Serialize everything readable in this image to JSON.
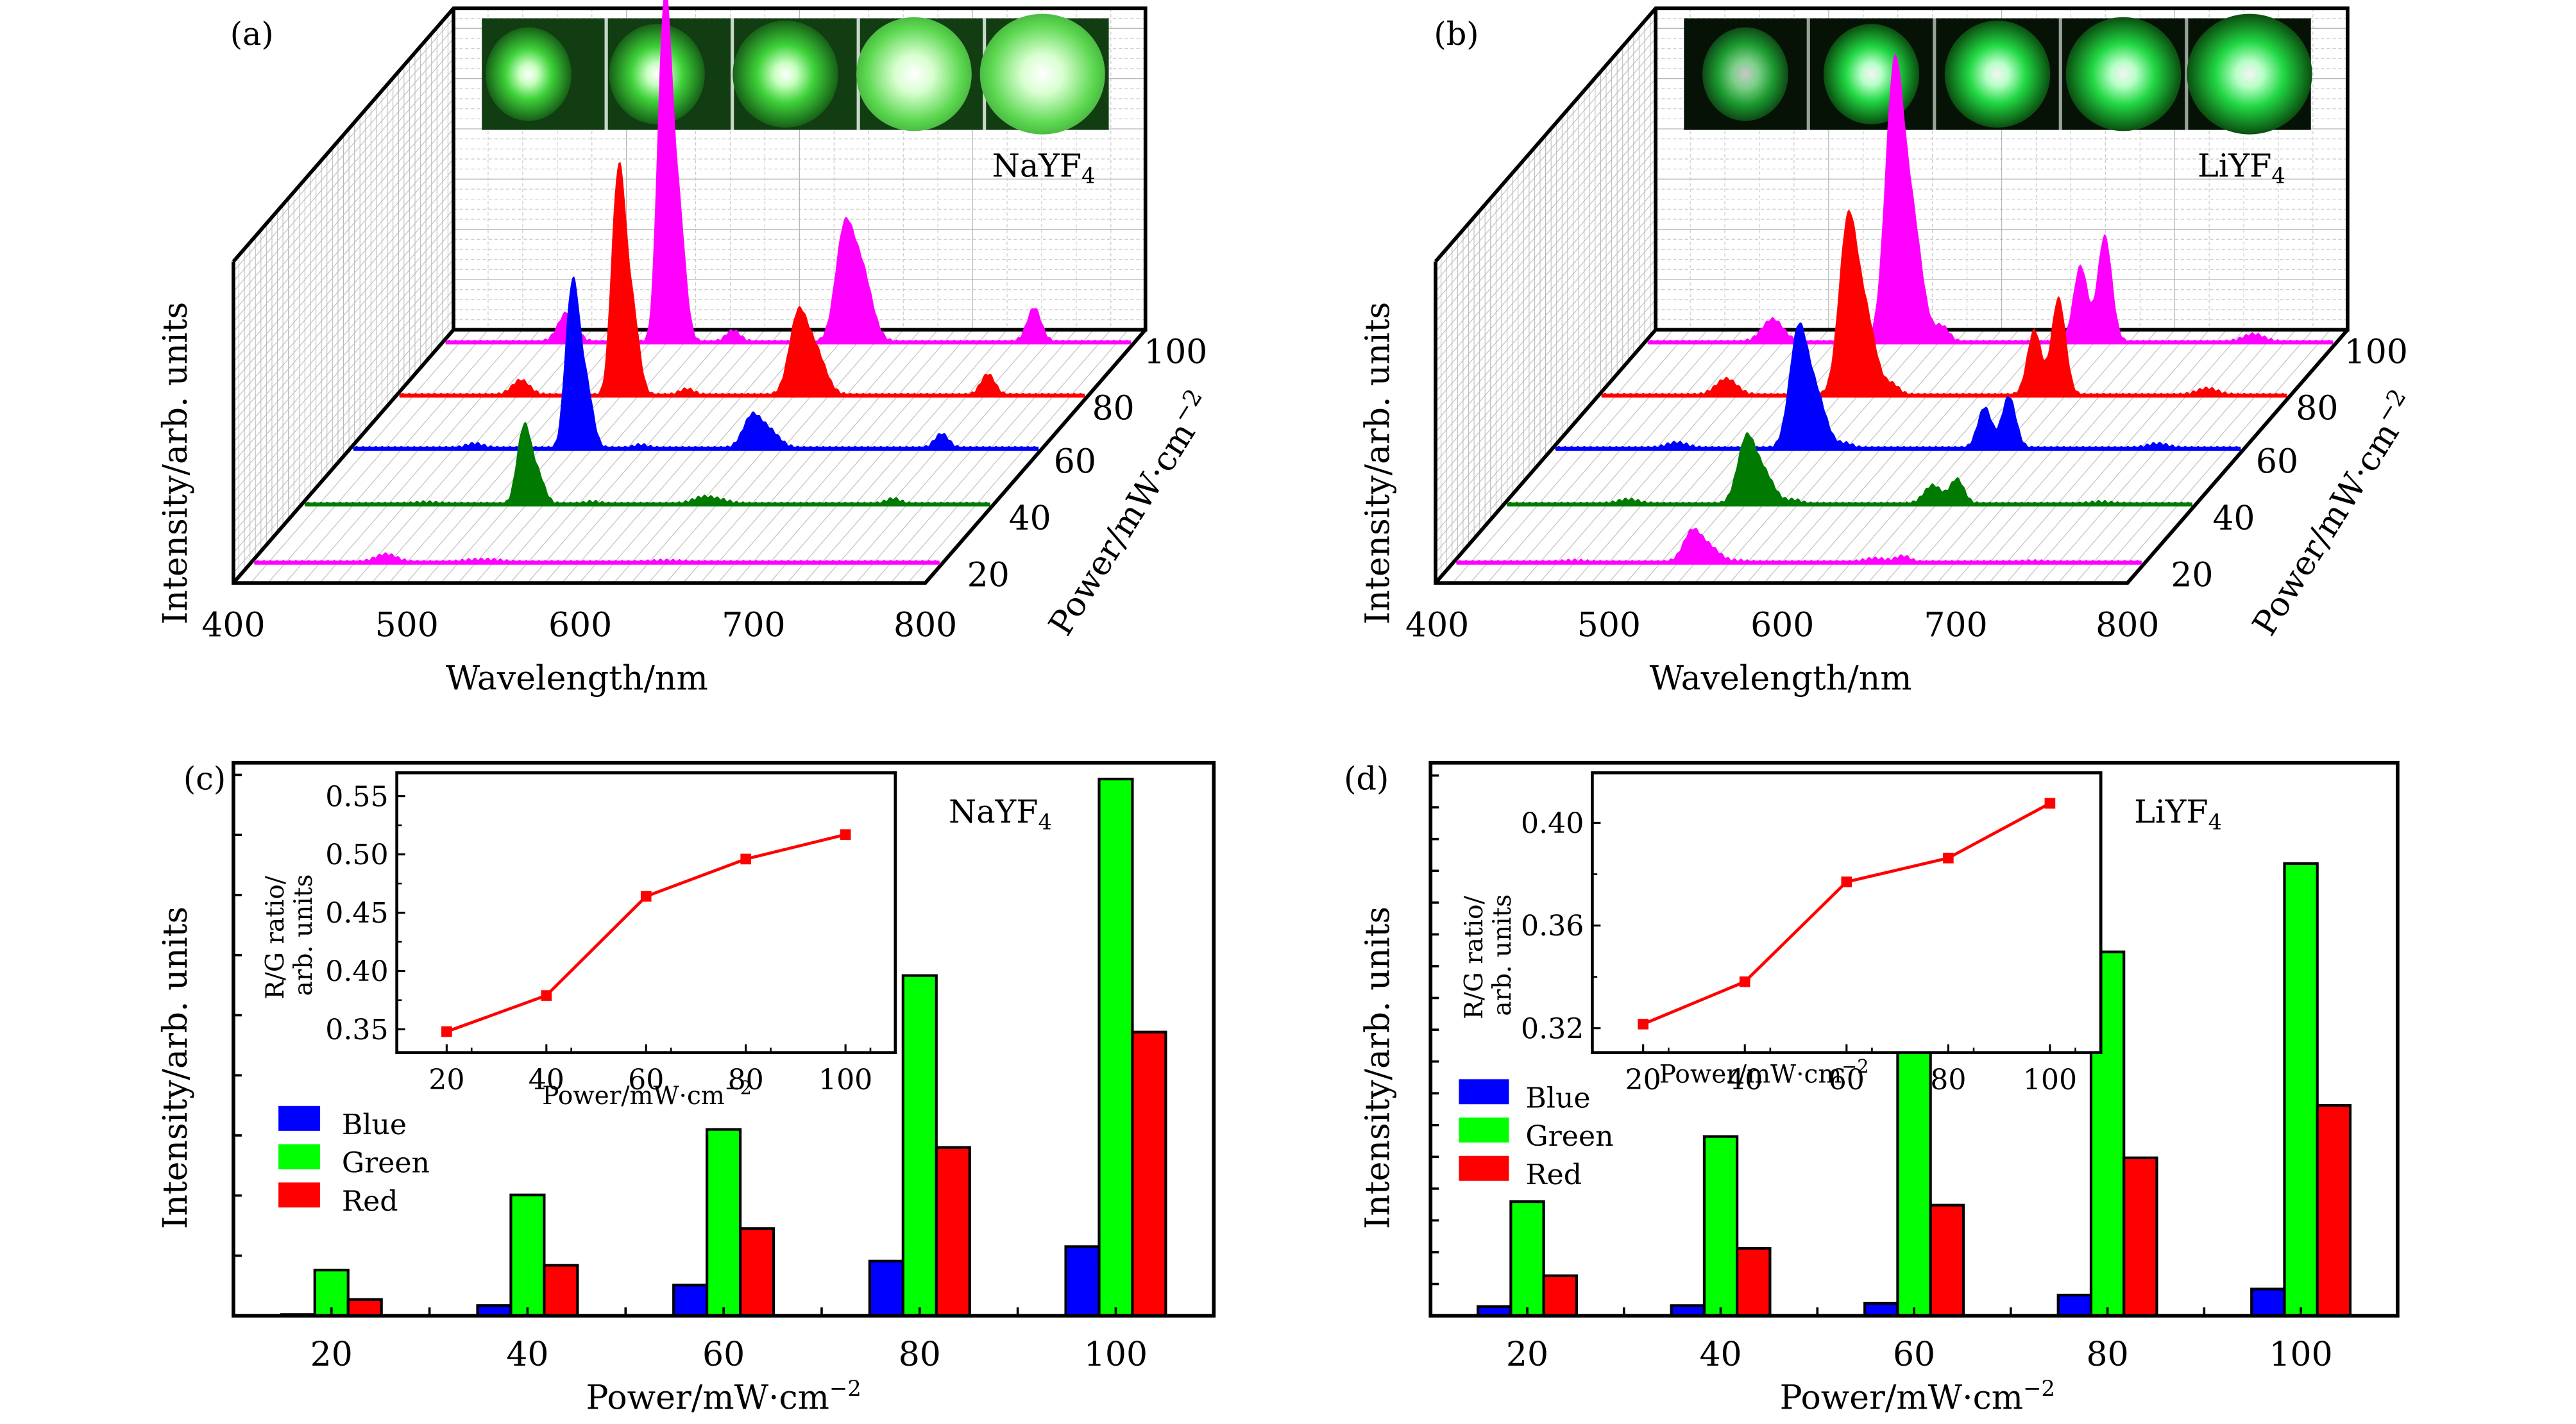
{
  "figure": {
    "panels": [
      "(a)",
      "(b)",
      "(c)",
      "(d)"
    ]
  },
  "chart_data": [
    {
      "id": "a",
      "type": "area",
      "panel_label": "(a)",
      "title": "",
      "material_label": "NaYF",
      "material_subscript": "4",
      "xlabel": "Wavelength/nm",
      "ylabel": "Intensity/arb. units",
      "zlabel": "Power/mW·cm",
      "zlabel_superscript": "−2",
      "xlim": [
        400,
        800
      ],
      "x_ticks": [
        "400",
        "500",
        "600",
        "700",
        "800"
      ],
      "z_ticks": [
        "20",
        "40",
        "60",
        "80",
        "100"
      ],
      "inset_images": 5,
      "series": [
        {
          "power": 20,
          "color": "#ff00ff",
          "scale": 0.03,
          "peaks": [
            [
              478,
              0.8,
              6
            ],
            [
              528,
              0.2,
              6
            ],
            [
              540,
              0.2,
              6
            ],
            [
              640,
              0.15,
              8
            ]
          ]
        },
        {
          "power": 40,
          "color": "#007a00",
          "scale": 0.16,
          "peaks": [
            [
              472,
              0.03,
              6
            ],
            [
              526,
              0.78,
              3
            ],
            [
              530,
              1.0,
              3
            ],
            [
              536,
              0.62,
              4
            ],
            [
              568,
              0.04,
              4
            ],
            [
              632,
              0.12,
              6
            ],
            [
              642,
              0.06,
              6
            ],
            [
              742,
              0.1,
              4
            ]
          ]
        },
        {
          "power": 60,
          "color": "#0000ff",
          "scale": 0.34,
          "peaks": [
            [
              472,
              0.04,
              5
            ],
            [
              526,
              0.78,
              3
            ],
            [
              530,
              1.0,
              3
            ],
            [
              536,
              0.62,
              4
            ],
            [
              568,
              0.03,
              4
            ],
            [
              632,
              0.27,
              5
            ],
            [
              642,
              0.16,
              6
            ],
            [
              742,
              0.13,
              4
            ]
          ]
        },
        {
          "power": 80,
          "color": "#ff0000",
          "scale": 0.46,
          "peaks": [
            [
              472,
              0.1,
              5
            ],
            [
              526,
              0.8,
              3
            ],
            [
              530,
              1.0,
              3
            ],
            [
              536,
              0.62,
              4
            ],
            [
              568,
              0.04,
              4
            ],
            [
              632,
              0.5,
              5
            ],
            [
              642,
              0.3,
              6
            ],
            [
              742,
              0.14,
              4
            ]
          ]
        },
        {
          "power": 100,
          "color": "#ff00ff",
          "scale": 0.7,
          "peaks": [
            [
              472,
              0.13,
              5
            ],
            [
              526,
              0.8,
              3
            ],
            [
              530,
              1.0,
              3
            ],
            [
              536,
              0.62,
              4
            ],
            [
              568,
              0.05,
              4
            ],
            [
              632,
              0.45,
              5
            ],
            [
              642,
              0.32,
              6
            ],
            [
              742,
              0.15,
              4
            ]
          ]
        }
      ]
    },
    {
      "id": "b",
      "type": "area",
      "panel_label": "(b)",
      "title": "",
      "material_label": "LiYF",
      "material_subscript": "4",
      "xlabel": "Wavelength/nm",
      "ylabel": "Intensity/arb. units",
      "zlabel": "Power/mW·cm",
      "zlabel_superscript": "−2",
      "xlim": [
        400,
        800
      ],
      "x_ticks": [
        "400",
        "500",
        "600",
        "700",
        "800"
      ],
      "z_ticks": [
        "20",
        "40",
        "60",
        "80",
        "100"
      ],
      "inset_images": 5,
      "series": [
        {
          "power": 20,
          "color": "#ff00ff",
          "scale": 0.09,
          "peaks": [
            [
              470,
              0.05,
              6
            ],
            [
              538,
              1.0,
              5
            ],
            [
              548,
              0.5,
              6
            ],
            [
              566,
              0.04,
              4
            ],
            [
              644,
              0.12,
              6
            ],
            [
              660,
              0.2,
              4
            ],
            [
              735,
              0.03,
              6
            ]
          ]
        },
        {
          "power": 40,
          "color": "#007a00",
          "scale": 0.19,
          "peaks": [
            [
              472,
              0.07,
              6
            ],
            [
              540,
              1.0,
              5
            ],
            [
              550,
              0.5,
              6
            ],
            [
              568,
              0.06,
              4
            ],
            [
              648,
              0.3,
              5
            ],
            [
              662,
              0.4,
              4
            ],
            [
              745,
              0.03,
              6
            ]
          ]
        },
        {
          "power": 60,
          "color": "#0000ff",
          "scale": 0.34,
          "peaks": [
            [
              472,
              0.05,
              6
            ],
            [
              542,
              1.0,
              5
            ],
            [
              552,
              0.5,
              6
            ],
            [
              570,
              0.04,
              4
            ],
            [
              650,
              0.37,
              4
            ],
            [
              664,
              0.47,
              4
            ],
            [
              750,
              0.04,
              6
            ]
          ]
        },
        {
          "power": 80,
          "color": "#ff0000",
          "scale": 0.5,
          "peaks": [
            [
              474,
              0.1,
              6
            ],
            [
              544,
              1.0,
              5
            ],
            [
              554,
              0.5,
              6
            ],
            [
              570,
              0.06,
              4
            ],
            [
              652,
              0.4,
              4
            ],
            [
              666,
              0.6,
              4
            ],
            [
              752,
              0.04,
              6
            ]
          ]
        },
        {
          "power": 100,
          "color": "#ff00ff",
          "scale": 0.78,
          "peaks": [
            [
              474,
              0.09,
              6
            ],
            [
              544,
              1.0,
              5
            ],
            [
              554,
              0.5,
              6
            ],
            [
              572,
              0.06,
              4
            ],
            [
              652,
              0.3,
              4
            ],
            [
              666,
              0.42,
              4
            ],
            [
              752,
              0.03,
              6
            ]
          ]
        }
      ]
    },
    {
      "id": "c",
      "type": "bar",
      "panel_label": "(c)",
      "material_label": "NaYF",
      "material_subscript": "4",
      "xlabel": "Power/mW·cm",
      "xlabel_superscript": "−2",
      "ylabel": "Intensity/arb. units",
      "categories": [
        "20",
        "40",
        "60",
        "80",
        "100"
      ],
      "ylim": [
        0,
        9.2
      ],
      "y_tick_count": 9,
      "legend_position": "center-left",
      "series": [
        {
          "name": "Blue",
          "color": "#0000ff",
          "values": [
            0.02,
            0.17,
            0.51,
            0.91,
            1.15
          ]
        },
        {
          "name": "Green",
          "color": "#00ff00",
          "values": [
            0.76,
            2.01,
            3.1,
            5.66,
            8.93
          ]
        },
        {
          "name": "Red",
          "color": "#ff0000",
          "values": [
            0.27,
            0.84,
            1.45,
            2.8,
            4.72
          ]
        }
      ],
      "inset": {
        "type": "line",
        "xlabel": "Power/mW·cm",
        "xlabel_superscript": "−2",
        "ylabel_line1": "R/G ratio/",
        "ylabel_line2": "arb. units",
        "x": [
          20,
          40,
          60,
          80,
          100
        ],
        "y": [
          0.348,
          0.379,
          0.464,
          0.496,
          0.517
        ],
        "xlim": [
          10,
          110
        ],
        "ylim": [
          0.33,
          0.57
        ],
        "x_ticks": [
          "20",
          "40",
          "60",
          "80",
          "100"
        ],
        "y_ticks": [
          "0.35",
          "0.40",
          "0.45",
          "0.50",
          "0.55"
        ],
        "color": "#ff0000"
      }
    },
    {
      "id": "d",
      "type": "bar",
      "panel_label": "(d)",
      "material_label": "LiYF",
      "material_subscript": "4",
      "xlabel": "Power/mW·cm",
      "xlabel_superscript": "−2",
      "ylabel": "Intensity/arb. units",
      "categories": [
        "20",
        "40",
        "60",
        "80",
        "100"
      ],
      "ylim": [
        0,
        17.4
      ],
      "y_tick_count": 17,
      "legend_position": "center-left",
      "series": [
        {
          "name": "Blue",
          "color": "#0000ff",
          "values": [
            0.29,
            0.32,
            0.39,
            0.65,
            0.84
          ]
        },
        {
          "name": "Green",
          "color": "#00ff00",
          "values": [
            3.59,
            5.64,
            8.41,
            11.45,
            14.23
          ]
        },
        {
          "name": "Red",
          "color": "#ff0000",
          "values": [
            1.26,
            2.12,
            3.48,
            4.97,
            6.62
          ]
        }
      ],
      "inset": {
        "type": "line",
        "xlabel": "Power/mW·cm",
        "xlabel_superscript": "−2",
        "ylabel_line1": "R/G ratio/",
        "ylabel_line2": "arb. units",
        "x": [
          20,
          40,
          60,
          80,
          100
        ],
        "y": [
          0.3216,
          0.3381,
          0.377,
          0.3863,
          0.4076
        ],
        "xlim": [
          10,
          110
        ],
        "ylim": [
          0.3105,
          0.4195
        ],
        "x_ticks": [
          "20",
          "40",
          "60",
          "80",
          "100"
        ],
        "y_ticks": [
          "0.32",
          "0.36",
          "0.40"
        ],
        "color": "#ff0000"
      }
    }
  ]
}
